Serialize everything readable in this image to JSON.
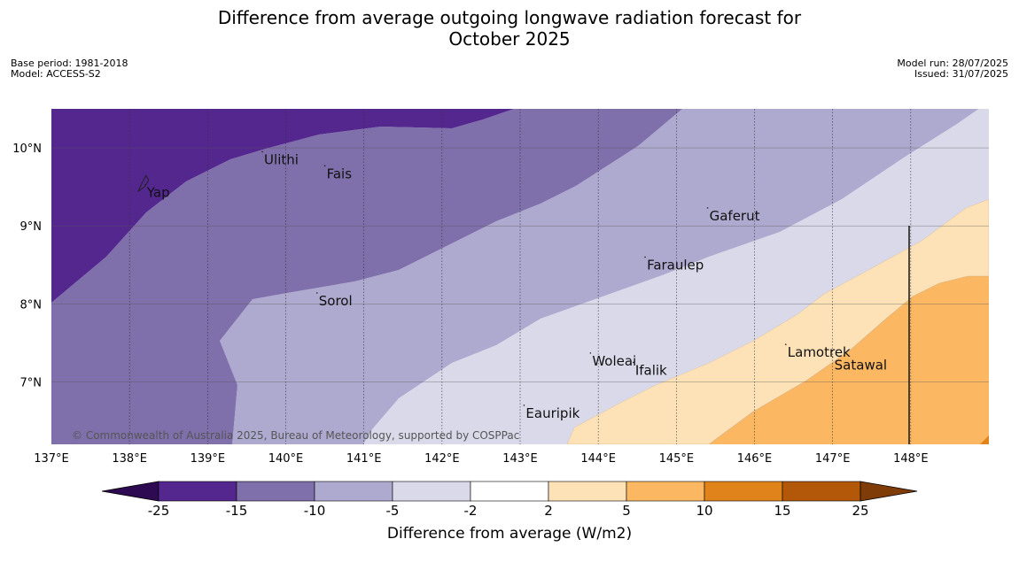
{
  "header": {
    "title_line1": "Difference from average outgoing longwave radiation forecast for",
    "title_line2": "October 2025",
    "base_period": "Base period: 1981-2018",
    "model": "Model: ACCESS-S2",
    "model_run": "Model run: 28/07/2025",
    "issued": "Issued: 31/07/2025"
  },
  "map": {
    "extent": {
      "lon_min": 137,
      "lon_max": 149,
      "lat_min": 6.2,
      "lat_max": 10.5
    },
    "lon_ticks": [
      "137°E",
      "138°E",
      "139°E",
      "140°E",
      "141°E",
      "142°E",
      "143°E",
      "144°E",
      "145°E",
      "146°E",
      "147°E",
      "148°E"
    ],
    "lat_ticks": [
      "10°N",
      "9°N",
      "8°N",
      "7°N"
    ],
    "places": [
      {
        "name": "Yap",
        "lon": 138.2,
        "lat": 9.53
      },
      {
        "name": "Ulithi",
        "lon": 139.7,
        "lat": 9.95
      },
      {
        "name": "Fais",
        "lon": 140.5,
        "lat": 9.77
      },
      {
        "name": "Gaferut",
        "lon": 145.4,
        "lat": 9.23
      },
      {
        "name": "Faraulep",
        "lon": 144.6,
        "lat": 8.6
      },
      {
        "name": "Sorol",
        "lon": 140.4,
        "lat": 8.14
      },
      {
        "name": "Woleai",
        "lon": 143.9,
        "lat": 7.37
      },
      {
        "name": "Ifalik",
        "lon": 144.45,
        "lat": 7.25
      },
      {
        "name": "Lamotrek",
        "lon": 146.4,
        "lat": 7.48
      },
      {
        "name": "Satawal",
        "lon": 147.0,
        "lat": 7.32
      },
      {
        "name": "Eauripik",
        "lon": 143.05,
        "lat": 6.7
      }
    ],
    "credit": "© Commonwealth of Australia 2025, Bureau of Meteorology, supported by COSPPac"
  },
  "colorbar": {
    "title": "Difference from average (W/m2)",
    "labels": [
      "-25",
      "-15",
      "-10",
      "-5",
      "-2",
      "2",
      "5",
      "10",
      "15",
      "25"
    ],
    "colors": [
      "#54278f",
      "#7f6fab",
      "#aea9cf",
      "#d9d9ea",
      "#ffffff",
      "#fde2b8",
      "#fbb761",
      "#e0831a",
      "#b25808"
    ],
    "under_color": "#2d0a52",
    "over_color": "#7f3b08"
  }
}
